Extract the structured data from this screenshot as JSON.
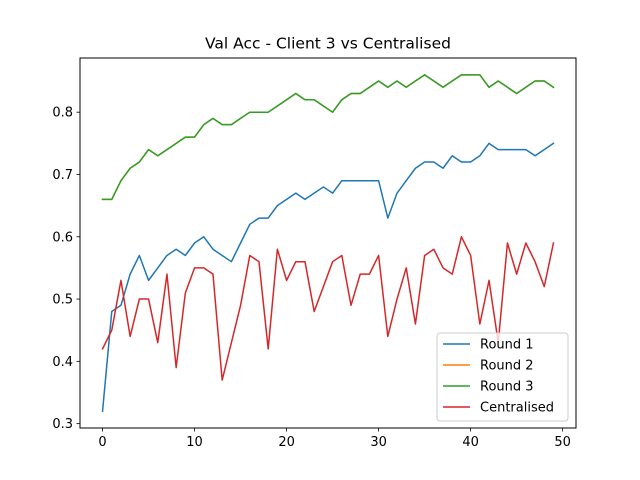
{
  "chart_data": {
    "type": "line",
    "title": "Val Acc - Client 3 vs Centralised",
    "xlabel": "",
    "ylabel": "",
    "xlim": [
      -2.45,
      51.45
    ],
    "ylim": [
      0.293,
      0.887
    ],
    "xticks": [
      0,
      10,
      20,
      30,
      40,
      50
    ],
    "yticks": [
      0.3,
      0.4,
      0.5,
      0.6,
      0.7,
      0.8
    ],
    "x": [
      0,
      1,
      2,
      3,
      4,
      5,
      6,
      7,
      8,
      9,
      10,
      11,
      12,
      13,
      14,
      15,
      16,
      17,
      18,
      19,
      20,
      21,
      22,
      23,
      24,
      25,
      26,
      27,
      28,
      29,
      30,
      31,
      32,
      33,
      34,
      35,
      36,
      37,
      38,
      39,
      40,
      41,
      42,
      43,
      44,
      45,
      46,
      47,
      48,
      49
    ],
    "legend_position": "lower right",
    "grid": false,
    "series": [
      {
        "name": "Round 1",
        "color": "#1f77b4",
        "values": [
          0.32,
          0.48,
          0.49,
          0.54,
          0.57,
          0.53,
          0.55,
          0.57,
          0.58,
          0.57,
          0.59,
          0.6,
          0.58,
          0.57,
          0.56,
          0.59,
          0.62,
          0.63,
          0.63,
          0.65,
          0.66,
          0.67,
          0.66,
          0.67,
          0.68,
          0.67,
          0.69,
          0.69,
          0.69,
          0.69,
          0.69,
          0.63,
          0.67,
          0.69,
          0.71,
          0.72,
          0.72,
          0.71,
          0.73,
          0.72,
          0.72,
          0.73,
          0.75,
          0.74,
          0.74,
          0.74,
          0.74,
          0.73,
          0.74,
          0.75
        ]
      },
      {
        "name": "Round 2",
        "color": "#ff7f0e",
        "values": [
          0.66,
          0.66,
          0.69,
          0.71,
          0.72,
          0.74,
          0.73,
          0.74,
          0.75,
          0.76,
          0.76,
          0.78,
          0.79,
          0.78,
          0.78,
          0.79,
          0.8,
          0.8,
          0.8,
          0.81,
          0.82,
          0.83,
          0.82,
          0.82,
          0.81,
          0.8,
          0.82,
          0.83,
          0.83,
          0.84,
          0.85,
          0.84,
          0.85,
          0.84,
          0.85,
          0.86,
          0.85,
          0.84,
          0.85,
          0.86,
          0.86,
          0.86,
          0.84,
          0.85,
          0.84,
          0.83,
          0.84,
          0.85,
          0.85,
          0.84
        ]
      },
      {
        "name": "Round 3",
        "color": "#2ca02c",
        "values": [
          0.66,
          0.66,
          0.69,
          0.71,
          0.72,
          0.74,
          0.73,
          0.74,
          0.75,
          0.76,
          0.76,
          0.78,
          0.79,
          0.78,
          0.78,
          0.79,
          0.8,
          0.8,
          0.8,
          0.81,
          0.82,
          0.83,
          0.82,
          0.82,
          0.81,
          0.8,
          0.82,
          0.83,
          0.83,
          0.84,
          0.85,
          0.84,
          0.85,
          0.84,
          0.85,
          0.86,
          0.85,
          0.84,
          0.85,
          0.86,
          0.86,
          0.86,
          0.84,
          0.85,
          0.84,
          0.83,
          0.84,
          0.85,
          0.85,
          0.84
        ]
      },
      {
        "name": "Centralised",
        "color": "#d62728",
        "values": [
          0.42,
          0.45,
          0.53,
          0.44,
          0.5,
          0.5,
          0.43,
          0.54,
          0.39,
          0.51,
          0.55,
          0.55,
          0.54,
          0.37,
          0.43,
          0.49,
          0.57,
          0.56,
          0.42,
          0.58,
          0.53,
          0.56,
          0.56,
          0.48,
          0.52,
          0.56,
          0.57,
          0.49,
          0.54,
          0.54,
          0.57,
          0.44,
          0.5,
          0.55,
          0.46,
          0.57,
          0.58,
          0.55,
          0.54,
          0.6,
          0.57,
          0.46,
          0.53,
          0.43,
          0.59,
          0.54,
          0.59,
          0.56,
          0.52,
          0.59
        ]
      }
    ]
  }
}
